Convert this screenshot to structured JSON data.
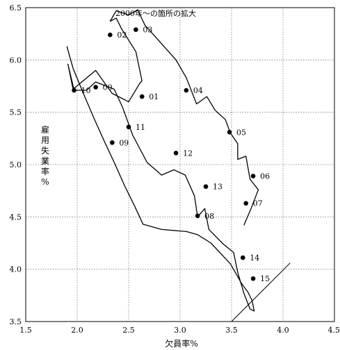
{
  "chart_data": {
    "type": "line",
    "title": "2000年～の箇所の拡大",
    "xlabel": "欠員率%",
    "ylabel": "雇用失業率%",
    "xlim": [
      1.5,
      4.5
    ],
    "ylim": [
      3.5,
      6.5
    ],
    "x_ticks": [
      "1.5",
      "2.0",
      "2.5",
      "3.0",
      "3.5",
      "4.0",
      "4.5"
    ],
    "y_ticks": [
      "3.5",
      "4.0",
      "4.5",
      "5.0",
      "5.5",
      "6.0",
      "6.5"
    ],
    "grid": true,
    "path": [
      {
        "x": 1.9,
        "y": 6.13
      },
      {
        "x": 1.96,
        "y": 5.92
      },
      {
        "x": 2.06,
        "y": 5.68
      },
      {
        "x": 2.16,
        "y": 5.45
      },
      {
        "x": 2.26,
        "y": 5.23
      },
      {
        "x": 2.36,
        "y": 5.02
      },
      {
        "x": 2.46,
        "y": 4.8
      },
      {
        "x": 2.56,
        "y": 4.6
      },
      {
        "x": 2.64,
        "y": 4.43
      },
      {
        "x": 2.82,
        "y": 4.38
      },
      {
        "x": 3.06,
        "y": 4.36
      },
      {
        "x": 3.17,
        "y": 4.33
      },
      {
        "x": 3.3,
        "y": 4.25
      },
      {
        "x": 3.49,
        "y": 4.05
      },
      {
        "x": 3.6,
        "y": 3.86
      },
      {
        "x": 3.66,
        "y": 3.78
      },
      {
        "x": 3.7,
        "y": 3.7
      },
      {
        "x": 3.72,
        "y": 3.6
      },
      {
        "x": 3.68,
        "y": 3.62
      },
      {
        "x": 3.62,
        "y": 3.77
      },
      {
        "x": 3.56,
        "y": 3.97
      },
      {
        "x": 3.52,
        "y": 4.16
      },
      {
        "x": 3.42,
        "y": 4.24
      },
      {
        "x": 3.28,
        "y": 4.38
      },
      {
        "x": 3.24,
        "y": 4.58
      },
      {
        "x": 3.17,
        "y": 4.5
      },
      {
        "x": 3.14,
        "y": 4.7
      },
      {
        "x": 3.05,
        "y": 4.9
      },
      {
        "x": 2.94,
        "y": 4.95
      },
      {
        "x": 2.82,
        "y": 4.9
      },
      {
        "x": 2.68,
        "y": 5.02
      },
      {
        "x": 2.54,
        "y": 5.28
      },
      {
        "x": 2.44,
        "y": 5.55
      },
      {
        "x": 2.36,
        "y": 5.72
      },
      {
        "x": 2.18,
        "y": 5.79
      },
      {
        "x": 2.09,
        "y": 5.71
      },
      {
        "x": 1.97,
        "y": 5.71
      },
      {
        "x": 1.91,
        "y": 5.96
      },
      {
        "x": 1.96,
        "y": 5.72
      },
      {
        "x": 2.18,
        "y": 5.9
      },
      {
        "x": 2.34,
        "y": 5.68
      },
      {
        "x": 2.5,
        "y": 5.6
      },
      {
        "x": 2.61,
        "y": 5.78
      },
      {
        "x": 2.63,
        "y": 5.8
      },
      {
        "x": 2.57,
        "y": 6.08
      },
      {
        "x": 2.43,
        "y": 6.3
      },
      {
        "x": 2.38,
        "y": 6.4
      },
      {
        "x": 2.32,
        "y": 6.37
      },
      {
        "x": 2.38,
        "y": 6.47
      },
      {
        "x": 2.5,
        "y": 6.43
      },
      {
        "x": 2.59,
        "y": 6.48
      },
      {
        "x": 2.64,
        "y": 6.37
      },
      {
        "x": 2.66,
        "y": 6.33
      },
      {
        "x": 2.77,
        "y": 6.21
      },
      {
        "x": 2.96,
        "y": 6.0
      },
      {
        "x": 3.06,
        "y": 5.83
      },
      {
        "x": 3.16,
        "y": 5.58
      },
      {
        "x": 3.26,
        "y": 5.65
      },
      {
        "x": 3.34,
        "y": 5.52
      },
      {
        "x": 3.44,
        "y": 5.43
      },
      {
        "x": 3.49,
        "y": 5.3
      },
      {
        "x": 3.56,
        "y": 5.2
      },
      {
        "x": 3.56,
        "y": 5.05
      },
      {
        "x": 3.64,
        "y": 5.08
      },
      {
        "x": 3.68,
        "y": 4.86
      },
      {
        "x": 3.76,
        "y": 4.76
      },
      {
        "x": 3.69,
        "y": 4.58
      },
      {
        "x": 3.62,
        "y": 4.42
      }
    ],
    "points": [
      {
        "label": "00",
        "x": 2.18,
        "y": 5.74
      },
      {
        "label": "01",
        "x": 2.63,
        "y": 5.65
      },
      {
        "label": "02",
        "x": 2.32,
        "y": 6.24
      },
      {
        "label": "03",
        "x": 2.57,
        "y": 6.29
      },
      {
        "label": "04",
        "x": 3.06,
        "y": 5.71
      },
      {
        "label": "05",
        "x": 3.48,
        "y": 5.31
      },
      {
        "label": "06",
        "x": 3.71,
        "y": 4.89
      },
      {
        "label": "07",
        "x": 3.64,
        "y": 4.63
      },
      {
        "label": "08",
        "x": 3.17,
        "y": 4.51
      },
      {
        "label": "09",
        "x": 2.34,
        "y": 5.21
      },
      {
        "label": "10",
        "x": 1.97,
        "y": 5.71
      },
      {
        "label": "11",
        "x": 2.5,
        "y": 5.36
      },
      {
        "label": "12",
        "x": 2.96,
        "y": 5.11
      },
      {
        "label": "13",
        "x": 3.25,
        "y": 4.79
      },
      {
        "label": "14",
        "x": 3.61,
        "y": 4.11
      },
      {
        "label": "15",
        "x": 3.71,
        "y": 3.91
      }
    ],
    "reference_line": [
      {
        "x": 3.5,
        "y": 3.5
      },
      {
        "x": 4.07,
        "y": 4.06
      }
    ]
  }
}
